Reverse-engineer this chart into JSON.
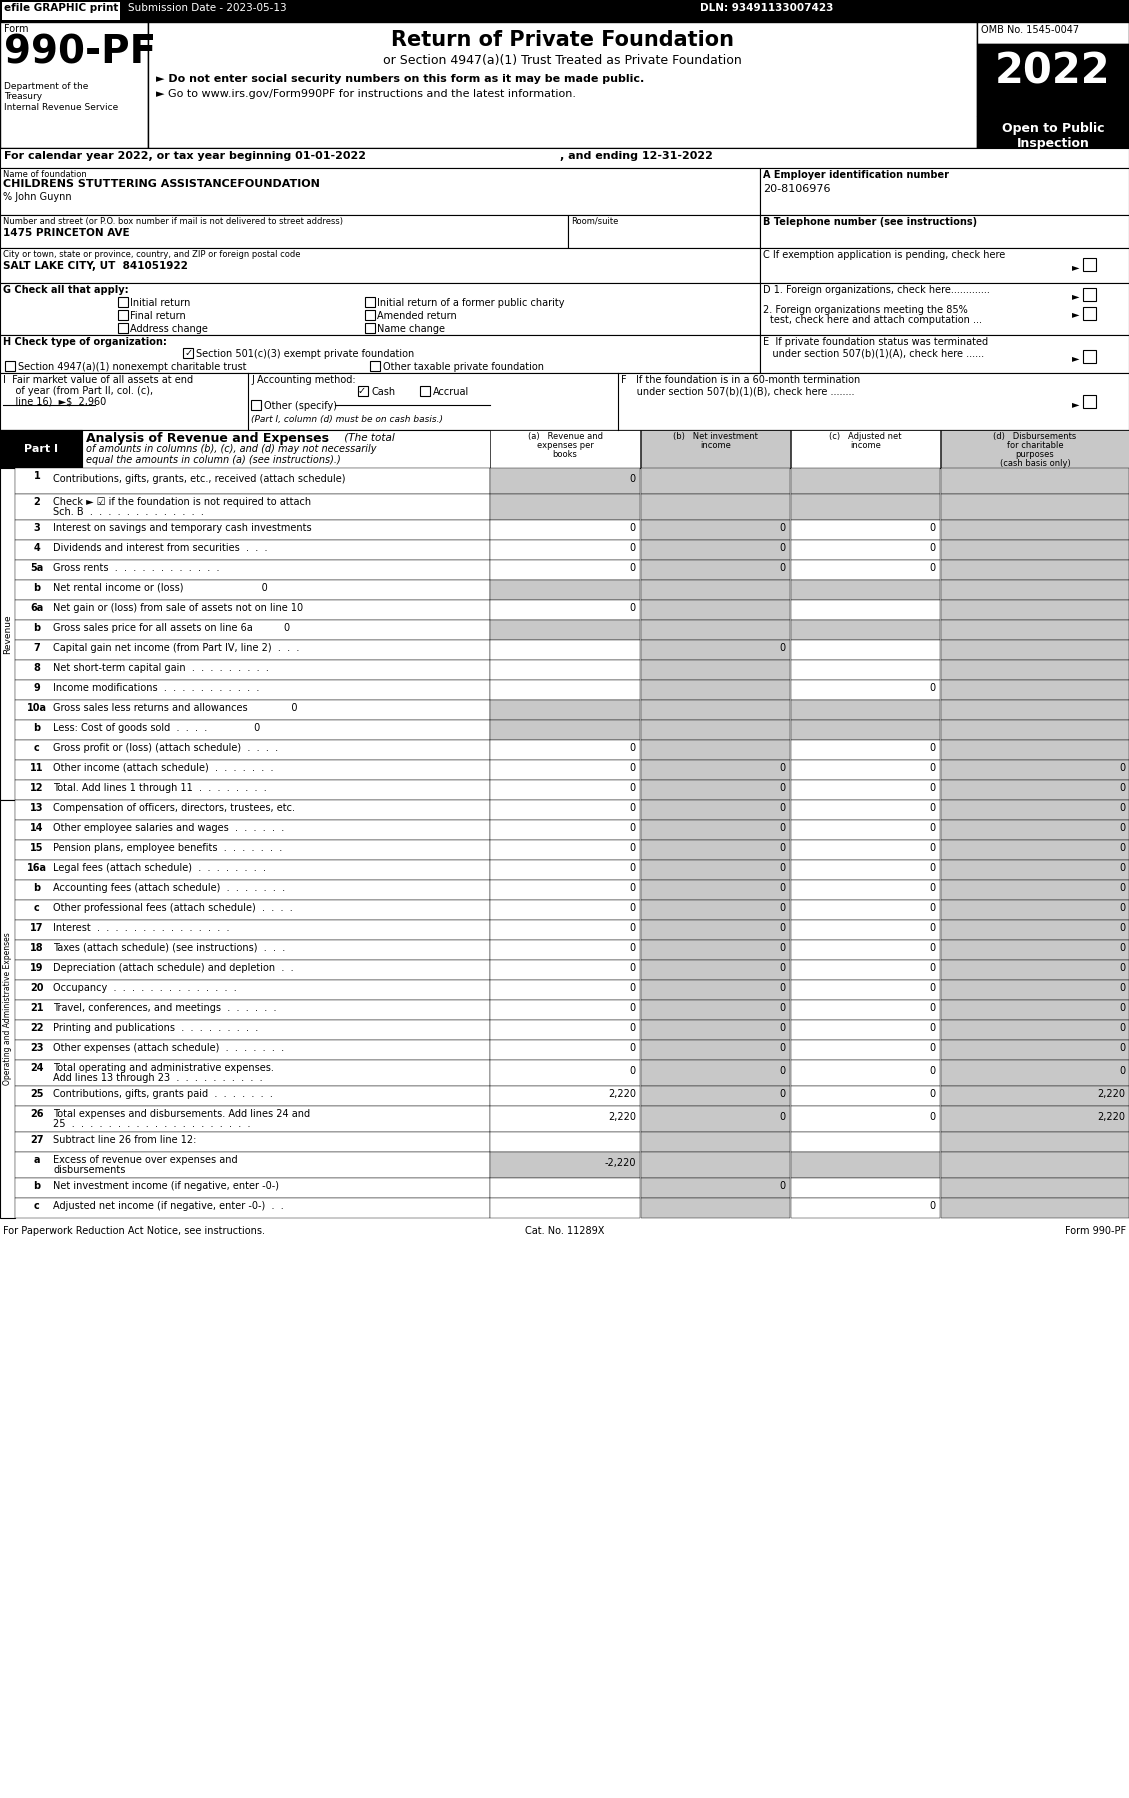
{
  "efile": "efile GRAPHIC print",
  "submission": "Submission Date - 2023-05-13",
  "dln": "DLN: 93491133007423",
  "omb": "OMB No. 1545-0047",
  "form_num": "990-PF",
  "dept": "Department of the\nTreasury\nInternal Revenue Service",
  "main_title": "Return of Private Foundation",
  "subtitle": "or Section 4947(a)(1) Trust Treated as Private Foundation",
  "bullet1": "► Do not enter social security numbers on this form as it may be made public.",
  "bullet2": "► Go to www.irs.gov/Form990PF for instructions and the latest information.",
  "year": "2022",
  "open_text": "Open to Public\nInspection",
  "cal_year": "For calendar year 2022, or tax year beginning 01-01-2022",
  "ending": ", and ending 12-31-2022",
  "name_val": "CHILDRENS STUTTERING ASSISTANCEFOUNDATION",
  "care_of": "% John Guynn",
  "street_label": "Number and street (or P.O. box number if mail is not delivered to street address)",
  "street_val": "1475 PRINCETON AVE",
  "room_label": "Room/suite",
  "city_label": "City or town, state or province, country, and ZIP or foreign postal code",
  "city_val": "SALT LAKE CITY, UT  841051922",
  "ein_label": "A Employer identification number",
  "ein_val": "20-8106976",
  "phone_label": "B Telephone number (see instructions)",
  "rows": [
    {
      "num": "1",
      "label": "Contributions, gifts, grants, etc., received (attach schedule)",
      "a": "0",
      "b": "",
      "c": "",
      "d": "",
      "tall": true,
      "shade_ab": true
    },
    {
      "num": "2",
      "label": "Check ► ☑ if the foundation is not required to attach\nSch. B  .  .  .  .  .  .  .  .  .  .  .  .  .",
      "a": "",
      "b": "",
      "c": "",
      "d": "",
      "tall": true,
      "shade_ab": true
    },
    {
      "num": "3",
      "label": "Interest on savings and temporary cash investments",
      "a": "0",
      "b": "0",
      "c": "0",
      "d": "",
      "tall": false,
      "shade_ab": false
    },
    {
      "num": "4",
      "label": "Dividends and interest from securities  .  .  .",
      "a": "0",
      "b": "0",
      "c": "0",
      "d": "",
      "tall": false,
      "shade_ab": false
    },
    {
      "num": "5a",
      "label": "Gross rents  .  .  .  .  .  .  .  .  .  .  .  .",
      "a": "0",
      "b": "0",
      "c": "0",
      "d": "",
      "tall": false,
      "shade_ab": false
    },
    {
      "num": "b",
      "label": "Net rental income or (loss)                         0",
      "a": "",
      "b": "",
      "c": "",
      "d": "",
      "tall": false,
      "shade_ab": true
    },
    {
      "num": "6a",
      "label": "Net gain or (loss) from sale of assets not on line 10",
      "a": "0",
      "b": "",
      "c": "",
      "d": "",
      "tall": false,
      "shade_ab": false
    },
    {
      "num": "b",
      "label": "Gross sales price for all assets on line 6a          0",
      "a": "",
      "b": "",
      "c": "",
      "d": "",
      "tall": false,
      "shade_ab": true
    },
    {
      "num": "7",
      "label": "Capital gain net income (from Part IV, line 2)  .  .  .",
      "a": "",
      "b": "0",
      "c": "",
      "d": "",
      "tall": false,
      "shade_ab": false
    },
    {
      "num": "8",
      "label": "Net short-term capital gain  .  .  .  .  .  .  .  .  .",
      "a": "",
      "b": "",
      "c": "",
      "d": "",
      "tall": false,
      "shade_ab": false
    },
    {
      "num": "9",
      "label": "Income modifications  .  .  .  .  .  .  .  .  .  .  .",
      "a": "",
      "b": "",
      "c": "0",
      "d": "",
      "tall": false,
      "shade_ab": false
    },
    {
      "num": "10a",
      "label": "Gross sales less returns and allowances              0",
      "a": "",
      "b": "",
      "c": "",
      "d": "",
      "tall": false,
      "shade_ab": true
    },
    {
      "num": "b",
      "label": "Less: Cost of goods sold  .  .  .  .               0",
      "a": "",
      "b": "",
      "c": "",
      "d": "",
      "tall": false,
      "shade_ab": true
    },
    {
      "num": "c",
      "label": "Gross profit or (loss) (attach schedule)  .  .  .  .",
      "a": "0",
      "b": "",
      "c": "0",
      "d": "",
      "tall": false,
      "shade_ab": false
    },
    {
      "num": "11",
      "label": "Other income (attach schedule)  .  .  .  .  .  .  .",
      "a": "0",
      "b": "0",
      "c": "0",
      "d": "0",
      "tall": false,
      "shade_ab": false
    },
    {
      "num": "12",
      "label": "Total. Add lines 1 through 11  .  .  .  .  .  .  .  .",
      "a": "0",
      "b": "0",
      "c": "0",
      "d": "0",
      "tall": false,
      "shade_ab": false
    },
    {
      "num": "13",
      "label": "Compensation of officers, directors, trustees, etc.",
      "a": "0",
      "b": "0",
      "c": "0",
      "d": "0",
      "tall": false,
      "shade_ab": false
    },
    {
      "num": "14",
      "label": "Other employee salaries and wages  .  .  .  .  .  .",
      "a": "0",
      "b": "0",
      "c": "0",
      "d": "0",
      "tall": false,
      "shade_ab": false
    },
    {
      "num": "15",
      "label": "Pension plans, employee benefits  .  .  .  .  .  .  .",
      "a": "0",
      "b": "0",
      "c": "0",
      "d": "0",
      "tall": false,
      "shade_ab": false
    },
    {
      "num": "16a",
      "label": "Legal fees (attach schedule)  .  .  .  .  .  .  .  .",
      "a": "0",
      "b": "0",
      "c": "0",
      "d": "0",
      "tall": false,
      "shade_ab": false
    },
    {
      "num": "b",
      "label": "Accounting fees (attach schedule)  .  .  .  .  .  .  .",
      "a": "0",
      "b": "0",
      "c": "0",
      "d": "0",
      "tall": false,
      "shade_ab": false
    },
    {
      "num": "c",
      "label": "Other professional fees (attach schedule)  .  .  .  .",
      "a": "0",
      "b": "0",
      "c": "0",
      "d": "0",
      "tall": false,
      "shade_ab": false
    },
    {
      "num": "17",
      "label": "Interest  .  .  .  .  .  .  .  .  .  .  .  .  .  .  .",
      "a": "0",
      "b": "0",
      "c": "0",
      "d": "0",
      "tall": false,
      "shade_ab": false
    },
    {
      "num": "18",
      "label": "Taxes (attach schedule) (see instructions)  .  .  .",
      "a": "0",
      "b": "0",
      "c": "0",
      "d": "0",
      "tall": false,
      "shade_ab": false
    },
    {
      "num": "19",
      "label": "Depreciation (attach schedule) and depletion  .  .",
      "a": "0",
      "b": "0",
      "c": "0",
      "d": "0",
      "tall": false,
      "shade_ab": false
    },
    {
      "num": "20",
      "label": "Occupancy  .  .  .  .  .  .  .  .  .  .  .  .  .  .",
      "a": "0",
      "b": "0",
      "c": "0",
      "d": "0",
      "tall": false,
      "shade_ab": false
    },
    {
      "num": "21",
      "label": "Travel, conferences, and meetings  .  .  .  .  .  .",
      "a": "0",
      "b": "0",
      "c": "0",
      "d": "0",
      "tall": false,
      "shade_ab": false
    },
    {
      "num": "22",
      "label": "Printing and publications  .  .  .  .  .  .  .  .  .",
      "a": "0",
      "b": "0",
      "c": "0",
      "d": "0",
      "tall": false,
      "shade_ab": false
    },
    {
      "num": "23",
      "label": "Other expenses (attach schedule)  .  .  .  .  .  .  .",
      "a": "0",
      "b": "0",
      "c": "0",
      "d": "0",
      "tall": false,
      "shade_ab": false
    },
    {
      "num": "24",
      "label": "Total operating and administrative expenses.\nAdd lines 13 through 23  .  .  .  .  .  .  .  .  .  .",
      "a": "0",
      "b": "0",
      "c": "0",
      "d": "0",
      "tall": true,
      "shade_ab": false
    },
    {
      "num": "25",
      "label": "Contributions, gifts, grants paid  .  .  .  .  .  .  .",
      "a": "2,220",
      "b": "0",
      "c": "0",
      "d": "2,220",
      "tall": false,
      "shade_ab": false
    },
    {
      "num": "26",
      "label": "Total expenses and disbursements. Add lines 24 and\n25  .  .  .  .  .  .  .  .  .  .  .  .  .  .  .  .  .  .  .  .",
      "a": "2,220",
      "b": "0",
      "c": "0",
      "d": "2,220",
      "tall": true,
      "shade_ab": false
    },
    {
      "num": "27",
      "label": "Subtract line 26 from line 12:",
      "a": "",
      "b": "",
      "c": "",
      "d": "",
      "tall": false,
      "shade_ab": false
    },
    {
      "num": "a",
      "label": "Excess of revenue over expenses and\ndisbursements",
      "a": "-2,220",
      "b": "",
      "c": "",
      "d": "",
      "tall": true,
      "shade_ab": true
    },
    {
      "num": "b",
      "label": "Net investment income (if negative, enter -0-)",
      "a": "",
      "b": "0",
      "c": "",
      "d": "",
      "tall": false,
      "shade_ab": false
    },
    {
      "num": "c",
      "label": "Adjusted net income (if negative, enter -0-)  .  .",
      "a": "",
      "b": "",
      "c": "0",
      "d": "",
      "tall": false,
      "shade_ab": false
    }
  ],
  "footer_left": "For Paperwork Reduction Act Notice, see instructions.",
  "footer_cat": "Cat. No. 11289X",
  "footer_right": "Form 990-PF"
}
